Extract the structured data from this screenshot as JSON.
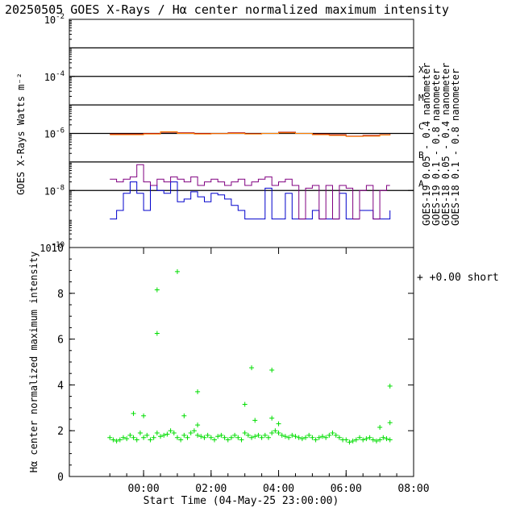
{
  "title": "20250505 GOES X-Rays / Hα center normalized maximum intensity",
  "chart_data": [
    {
      "type": "line",
      "panel": "top",
      "ylabel": "GOES X-Rays Watts m⁻²",
      "yscale": "log",
      "ylim": [
        1e-10,
        0.01
      ],
      "xlim": [
        -1.2,
        9.0
      ],
      "x_unit": "hours after 04-May-25 23:00:00",
      "ytick_values": [
        1e-10,
        1e-08,
        1e-06,
        0.0001,
        0.01
      ],
      "ytick_labels": [
        {
          "base": "10",
          "exp": "-10"
        },
        {
          "base": "10",
          "exp": "-8"
        },
        {
          "base": "10",
          "exp": "-6"
        },
        {
          "base": "10",
          "exp": "-4"
        },
        {
          "base": "10",
          "exp": "-2"
        }
      ],
      "flare_levels": [
        1e-08,
        1e-07,
        1e-06,
        1e-05,
        0.0001,
        0.001
      ],
      "flare_class_labels": [
        {
          "label": "A",
          "level": 1e-08
        },
        {
          "label": "B",
          "level": 1e-07
        },
        {
          "label": "C",
          "level": 1e-06
        },
        {
          "label": "M",
          "level": 1e-05
        },
        {
          "label": "X",
          "level": 0.0001
        }
      ],
      "series": [
        {
          "name": "GOES-19 0.05 - 0.4 nanometer",
          "color": "#0000cc",
          "x": [
            0.0,
            0.2,
            0.4,
            0.6,
            0.8,
            1.0,
            1.2,
            1.4,
            1.6,
            1.8,
            2.0,
            2.2,
            2.4,
            2.6,
            2.8,
            3.0,
            3.2,
            3.4,
            3.6,
            3.8,
            4.0,
            4.2,
            4.4,
            4.6,
            4.8,
            5.0,
            5.2,
            5.4,
            5.6,
            5.8,
            6.0,
            6.2,
            6.4,
            6.6,
            6.8,
            7.0,
            7.2,
            7.4,
            7.6,
            7.8,
            8.0,
            8.2,
            8.3
          ],
          "y": [
            1e-09,
            2e-09,
            8e-09,
            2e-08,
            8e-09,
            2e-09,
            1.5e-08,
            1e-08,
            8e-09,
            2e-08,
            4e-09,
            5e-09,
            9e-09,
            6e-09,
            4e-09,
            8e-09,
            7e-09,
            5e-09,
            3e-09,
            2e-09,
            1e-09,
            1e-09,
            1e-09,
            1.2e-08,
            1e-09,
            1e-09,
            8e-09,
            1e-09,
            1e-09,
            1e-09,
            2e-09,
            1e-09,
            1e-09,
            1e-09,
            8e-09,
            1e-09,
            1e-09,
            2e-09,
            2e-09,
            1e-09,
            1e-09,
            1e-09,
            2e-09
          ]
        },
        {
          "name": "GOES-19 0.1 - 0.8 nanometer",
          "color": "#aa0000",
          "x": [
            0.0,
            0.5,
            1.0,
            1.5,
            2.0,
            2.5,
            3.0,
            3.5,
            4.0,
            4.5,
            5.0,
            5.5,
            6.0,
            6.5,
            7.0,
            7.5,
            8.0,
            8.3
          ],
          "y": [
            9.5e-07,
            9.5e-07,
            1e-06,
            1.1e-06,
            1.05e-06,
            1e-06,
            1e-06,
            1.05e-06,
            9.8e-07,
            1e-06,
            1.1e-06,
            1e-06,
            9.5e-07,
            9e-07,
            8e-07,
            8.5e-07,
            9e-07,
            9.5e-07
          ]
        },
        {
          "name": "GOES-18 0.05 - 0.4 nanometer",
          "color": "#800080",
          "x": [
            0.0,
            0.2,
            0.4,
            0.6,
            0.8,
            1.0,
            1.2,
            1.4,
            1.6,
            1.8,
            2.0,
            2.2,
            2.4,
            2.6,
            2.8,
            3.0,
            3.2,
            3.4,
            3.6,
            3.8,
            4.0,
            4.2,
            4.4,
            4.6,
            4.8,
            5.0,
            5.2,
            5.4,
            5.6,
            5.8,
            6.0,
            6.2,
            6.4,
            6.6,
            6.8,
            7.0,
            7.2,
            7.4,
            7.6,
            7.8,
            8.0,
            8.2,
            8.3
          ],
          "y": [
            2.5e-08,
            2e-08,
            2.5e-08,
            3e-08,
            8e-08,
            2e-08,
            1.5e-08,
            2.5e-08,
            2e-08,
            3e-08,
            2.5e-08,
            2e-08,
            3e-08,
            1.5e-08,
            2e-08,
            2.5e-08,
            2e-08,
            1.5e-08,
            2e-08,
            2.5e-08,
            1.5e-08,
            2e-08,
            2.5e-08,
            3e-08,
            1.5e-08,
            2e-08,
            2.5e-08,
            1.5e-08,
            1e-09,
            1.2e-08,
            1.5e-08,
            1e-09,
            1.5e-08,
            1e-09,
            1.5e-08,
            1.2e-08,
            1e-09,
            1e-08,
            1.5e-08,
            1e-09,
            1e-08,
            1.5e-08,
            1.5e-08
          ]
        },
        {
          "name": "GOES-18 0.1 - 0.8 nanometer",
          "color": "#ff7f00",
          "x": [
            0.0,
            0.5,
            1.0,
            1.5,
            2.0,
            2.5,
            3.0,
            3.5,
            4.0,
            4.5,
            5.0,
            5.5,
            6.0,
            6.5,
            7.0,
            7.5,
            8.0,
            8.3
          ],
          "y": [
            9e-07,
            9e-07,
            9.5e-07,
            1.15e-06,
            1e-06,
            9.5e-07,
            9.8e-07,
            1e-06,
            9.5e-07,
            1e-06,
            1.05e-06,
            1e-06,
            9e-07,
            8.5e-07,
            7.8e-07,
            8e-07,
            8.8e-07,
            9.2e-07
          ]
        }
      ]
    },
    {
      "type": "scatter",
      "panel": "bottom",
      "ylabel": "Hα center normalized maximum intensity",
      "xlabel": "Start Time (04-May-25 23:00:00)",
      "ylim": [
        0,
        10
      ],
      "xlim": [
        -1.2,
        9.0
      ],
      "x_unit": "hours after 04-May-25 23:00:00",
      "yticks": [
        0,
        2,
        4,
        6,
        8,
        10
      ],
      "xticks": [
        1,
        3,
        5,
        7,
        9
      ],
      "xtick_labels": [
        "00:00",
        "02:00",
        "04:00",
        "06:00",
        "08:00"
      ],
      "marker": "+",
      "color": "#00dd00",
      "legend": "+0.00 short",
      "series": [
        {
          "name": "+0.00 short",
          "x": [
            0.0,
            0.1,
            0.2,
            0.3,
            0.4,
            0.5,
            0.6,
            0.7,
            0.8,
            0.9,
            1.0,
            1.1,
            1.2,
            1.3,
            1.4,
            1.5,
            1.6,
            1.7,
            1.8,
            1.9,
            2.0,
            2.1,
            2.2,
            2.3,
            2.4,
            2.5,
            2.6,
            2.7,
            2.8,
            2.9,
            3.0,
            3.1,
            3.2,
            3.3,
            3.4,
            3.5,
            3.6,
            3.7,
            3.8,
            3.9,
            4.0,
            4.1,
            4.2,
            4.3,
            4.4,
            4.5,
            4.6,
            4.7,
            4.8,
            4.9,
            5.0,
            5.1,
            5.2,
            5.3,
            5.4,
            5.5,
            5.6,
            5.7,
            5.8,
            5.9,
            6.0,
            6.1,
            6.2,
            6.3,
            6.4,
            6.5,
            6.6,
            6.7,
            6.8,
            6.9,
            7.0,
            7.1,
            7.2,
            7.3,
            7.4,
            7.5,
            7.6,
            7.7,
            7.8,
            7.9,
            8.0,
            8.1,
            8.2,
            8.3,
            0.7,
            1.0,
            1.4,
            1.4,
            2.0,
            2.2,
            2.6,
            2.6,
            4.0,
            4.2,
            4.3,
            4.8,
            4.8,
            5.0,
            8.0,
            8.3,
            8.3
          ],
          "y": [
            1.7,
            1.6,
            1.55,
            1.6,
            1.7,
            1.65,
            1.8,
            1.7,
            1.6,
            1.9,
            1.7,
            1.8,
            1.6,
            1.7,
            1.9,
            1.75,
            1.8,
            1.85,
            2.0,
            1.9,
            1.7,
            1.6,
            1.8,
            1.7,
            1.9,
            2.0,
            1.8,
            1.75,
            1.7,
            1.8,
            1.7,
            1.6,
            1.75,
            1.8,
            1.7,
            1.6,
            1.7,
            1.8,
            1.7,
            1.6,
            1.9,
            1.8,
            1.7,
            1.75,
            1.8,
            1.7,
            1.8,
            1.7,
            1.9,
            2.0,
            1.9,
            1.8,
            1.75,
            1.7,
            1.8,
            1.75,
            1.7,
            1.65,
            1.7,
            1.8,
            1.7,
            1.6,
            1.7,
            1.75,
            1.7,
            1.8,
            1.9,
            1.8,
            1.7,
            1.6,
            1.6,
            1.5,
            1.55,
            1.6,
            1.7,
            1.6,
            1.65,
            1.7,
            1.6,
            1.55,
            1.6,
            1.7,
            1.65,
            1.6,
            2.75,
            2.65,
            8.15,
            6.25,
            8.95,
            2.65,
            3.7,
            2.25,
            3.15,
            4.75,
            2.45,
            4.65,
            2.55,
            2.3,
            2.15,
            3.95,
            2.35
          ]
        }
      ]
    }
  ]
}
